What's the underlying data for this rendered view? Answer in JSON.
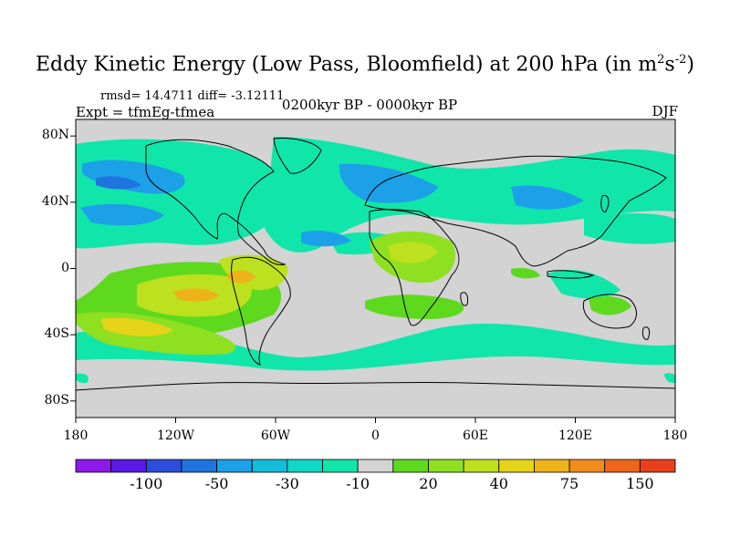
{
  "title": {
    "main": "Eddy Kinetic Energy (Low Pass, Bloomfield) at 200 hPa (in m",
    "sup1": "2",
    "mid": "s",
    "sup2": "-2",
    "end": ")"
  },
  "stats": {
    "rmsd": "rmsd= 14.4711 diff= -3.12111"
  },
  "experiment": "Expt = tfmEg-tfmea",
  "period": "0200kyr BP - 0000kyr BP",
  "season": "DJF",
  "colors": {
    "background_land_sea": "#d3d3d3",
    "coastline": "#000000"
  },
  "map": {
    "projection": "cylindrical-equidistant",
    "lon_range": [
      -180,
      180
    ],
    "lat_range": [
      -90,
      90
    ],
    "y_ticks": [
      {
        "value": 80,
        "label": "80N"
      },
      {
        "value": 40,
        "label": "40N"
      },
      {
        "value": 0,
        "label": "0"
      },
      {
        "value": -40,
        "label": "40S"
      },
      {
        "value": -80,
        "label": "80S"
      }
    ],
    "x_ticks": [
      {
        "value": -180,
        "label": "180"
      },
      {
        "value": -120,
        "label": "120W"
      },
      {
        "value": -60,
        "label": "60W"
      },
      {
        "value": 0,
        "label": "0"
      },
      {
        "value": 60,
        "label": "60E"
      },
      {
        "value": 120,
        "label": "120E"
      },
      {
        "value": 180,
        "label": "180"
      }
    ]
  },
  "colorbar": {
    "colors": [
      "#8c1aeb",
      "#5a1ae6",
      "#2c4ddc",
      "#1f74e0",
      "#1ca0e8",
      "#14bcd9",
      "#0fd8c8",
      "#10e6aa",
      "#d3d3d3",
      "#5ed91e",
      "#8ee020",
      "#bde01f",
      "#e6d41a",
      "#eeb21a",
      "#f08c1c",
      "#ed661c",
      "#e8401a"
    ],
    "labels": [
      {
        "text": "-100",
        "after_box": 2
      },
      {
        "text": "-50",
        "after_box": 4
      },
      {
        "text": "-30",
        "after_box": 6
      },
      {
        "text": "-10",
        "after_box": 8
      },
      {
        "text": "20",
        "after_box": 10
      },
      {
        "text": "40",
        "after_box": 12
      },
      {
        "text": "75",
        "after_box": 14
      },
      {
        "text": "150",
        "after_box": 16
      }
    ]
  }
}
